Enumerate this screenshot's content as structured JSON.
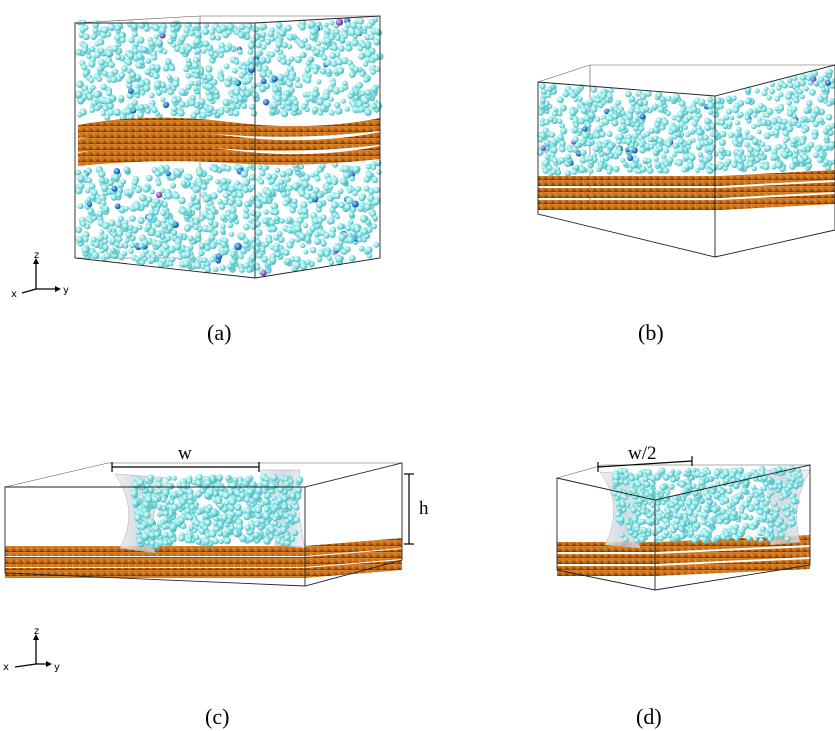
{
  "colors": {
    "water": "#8ee6e6",
    "water_dark": "#4fbcc4",
    "ion_blue": "#2e7fd6",
    "ion_purple": "#9b59d0",
    "graphene": "#c0660f",
    "graphene_dark": "#7a3a05",
    "membrane": "#d4d8dc"
  },
  "panels": [
    {
      "id": "a",
      "caption": "(a)",
      "description_icon": "water-box-bilayer-center"
    },
    {
      "id": "b",
      "caption": "(b)",
      "description_icon": "water-box-bilayer-bottom"
    },
    {
      "id": "c",
      "caption": "(c)",
      "description_icon": "water-slab-wide"
    },
    {
      "id": "d",
      "caption": "(d)",
      "description_icon": "water-slab-narrow"
    }
  ],
  "dimensions": {
    "c_width": "w",
    "c_height": "h",
    "d_width": "w/2"
  },
  "axes": {
    "z": "z",
    "x": "x",
    "y": "y"
  }
}
